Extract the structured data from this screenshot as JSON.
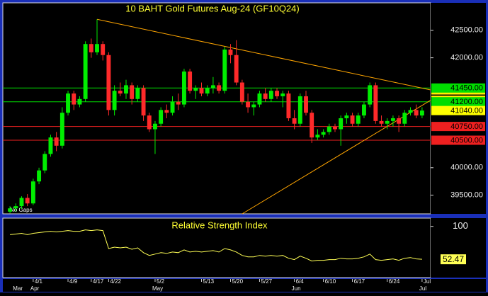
{
  "chart_data": [
    {
      "type": "candlestick",
      "title": "10 BAHT Gold Futures Aug-24 (GF10Q24)",
      "note": "No Gaps",
      "categories": [
        null,
        null,
        null,
        null,
        "4/1",
        null,
        null,
        null,
        null,
        null,
        "4/9",
        null,
        null,
        null,
        "4/17",
        null,
        null,
        "4/22",
        null,
        null,
        null,
        null,
        null,
        null,
        null,
        "5/2",
        null,
        null,
        null,
        null,
        null,
        null,
        null,
        "5/13",
        null,
        null,
        null,
        null,
        "5/20",
        null,
        null,
        null,
        null,
        "5/27",
        null,
        null,
        null,
        null,
        null,
        "6/4",
        null,
        null,
        null,
        null,
        "6/10",
        null,
        null,
        null,
        null,
        "6/17",
        null,
        null,
        null,
        null,
        null,
        "6/24",
        null,
        null,
        null,
        null,
        null,
        "Jul"
      ],
      "months": [
        null,
        "Mar",
        null,
        null,
        "Apr",
        null,
        null,
        null,
        null,
        null,
        null,
        null,
        null,
        null,
        null,
        null,
        null,
        null,
        null,
        null,
        null,
        null,
        null,
        null,
        null,
        "May",
        null,
        null,
        null,
        null,
        null,
        null,
        null,
        null,
        null,
        null,
        null,
        null,
        null,
        null,
        null,
        null,
        null,
        null,
        null,
        null,
        null,
        null,
        null,
        "Jun",
        null,
        null,
        null,
        null,
        null,
        null,
        null,
        null,
        null,
        null,
        null,
        null,
        null,
        null,
        null,
        null,
        null,
        null,
        null,
        null,
        null,
        "Jul"
      ],
      "open": [
        39200,
        39260,
        39300,
        39450,
        39350,
        39750,
        39950,
        40250,
        40550,
        40400,
        41000,
        41350,
        41150,
        41250,
        42250,
        42100,
        42250,
        42050,
        41050,
        41400,
        41350,
        41500,
        41250,
        41450,
        40950,
        40700,
        40800,
        41050,
        41000,
        41200,
        41150,
        41750,
        41400,
        41450,
        41350,
        41450,
        41500,
        41400,
        42150,
        42050,
        41550,
        41200,
        41100,
        41150,
        41350,
        41250,
        41400,
        41300,
        41350,
        40900,
        40800,
        41300,
        41000,
        40550,
        40600,
        40650,
        40750,
        40700,
        40900,
        40950,
        40800,
        40950,
        41150,
        41500,
        40850,
        40800,
        40850,
        40900,
        40800,
        41000,
        41050,
        40950
      ],
      "high": [
        39300,
        39350,
        39480,
        39520,
        39800,
        40000,
        40300,
        40600,
        40650,
        41100,
        41400,
        41400,
        41300,
        42300,
        42350,
        42700,
        42300,
        42100,
        41500,
        41550,
        41600,
        41550,
        41500,
        41500,
        41000,
        40850,
        41100,
        41150,
        41300,
        41350,
        41800,
        41800,
        41500,
        41550,
        41500,
        41650,
        41550,
        42200,
        42250,
        42320,
        41600,
        41350,
        41200,
        41400,
        41450,
        41450,
        41450,
        41400,
        41400,
        41050,
        41350,
        41400,
        41050,
        40700,
        40700,
        40800,
        40800,
        40950,
        41000,
        41000,
        41000,
        41200,
        41550,
        41550,
        40950,
        40900,
        40950,
        40950,
        41050,
        41100,
        41150,
        41100
      ],
      "low": [
        39170,
        39200,
        39250,
        39300,
        39320,
        39700,
        39900,
        40200,
        40300,
        40350,
        40950,
        41050,
        41100,
        41200,
        42000,
        42050,
        41950,
        40950,
        40950,
        41300,
        41250,
        41150,
        41200,
        40850,
        40650,
        40250,
        40750,
        40900,
        40950,
        41050,
        41100,
        41350,
        41250,
        41300,
        41300,
        41350,
        41350,
        41350,
        41900,
        41500,
        41150,
        41000,
        40950,
        41100,
        41200,
        41200,
        41250,
        41100,
        40850,
        40700,
        40750,
        40950,
        40450,
        40500,
        40550,
        40600,
        40650,
        40400,
        40800,
        40750,
        40750,
        40900,
        41100,
        40800,
        40750,
        40700,
        40750,
        40650,
        40750,
        40950,
        40900,
        40900
      ],
      "close": [
        39260,
        39300,
        39450,
        39350,
        39750,
        39950,
        40250,
        40550,
        40400,
        41000,
        41350,
        41150,
        41250,
        42250,
        42100,
        42250,
        42050,
        41050,
        41400,
        41350,
        41500,
        41250,
        41450,
        40950,
        40700,
        40800,
        41050,
        41000,
        41200,
        41150,
        41750,
        41400,
        41450,
        41350,
        41450,
        41500,
        41400,
        42150,
        42050,
        41550,
        41200,
        41100,
        41150,
        41350,
        41250,
        41400,
        41300,
        41350,
        40900,
        40800,
        41300,
        41000,
        40550,
        40600,
        40650,
        40750,
        40700,
        40900,
        40950,
        40800,
        40950,
        41150,
        41500,
        40850,
        40800,
        40850,
        40900,
        40800,
        41000,
        41050,
        40950,
        41040
      ],
      "up_color": "#00ee00",
      "down_color": "#ff2a2a",
      "ylim": [
        39160,
        43000
      ],
      "yticks": [
        {
          "value": 39500,
          "label": "39500.00"
        },
        {
          "value": 40000,
          "label": "40000.00"
        },
        {
          "value": 42000,
          "label": "42000.00"
        },
        {
          "value": 42500,
          "label": "42500.00"
        }
      ],
      "levels": [
        {
          "value": 41450,
          "label": "41450.00",
          "color": "#00dd00",
          "line": true
        },
        {
          "value": 41200,
          "label": "41200.00",
          "color": "#00dd00",
          "line": true
        },
        {
          "value": 40750,
          "label": "40750.00",
          "color": "#ee2020",
          "line": true
        },
        {
          "value": 40500,
          "label": "40500.00",
          "color": "#ee2020",
          "line": true
        },
        {
          "value": 41040,
          "label": "41040.00",
          "color": "#ffff00",
          "line": false
        }
      ],
      "trendlines": [
        {
          "start_index": 15,
          "start_value": 42700,
          "end_value": 41414.84,
          "color": "#ffa500"
        },
        {
          "start_index": 40,
          "start_value": 39160,
          "end_value": 41227.32,
          "color": "#ffa500"
        }
      ]
    },
    {
      "type": "line",
      "title": "Relative Strength Index",
      "values": [
        88,
        89,
        90,
        88,
        90,
        91,
        92,
        93,
        92,
        93,
        94,
        93,
        93,
        95,
        94,
        95,
        94,
        68,
        70,
        69,
        70,
        67,
        69,
        62,
        58,
        60,
        62,
        61,
        63,
        62,
        66,
        63,
        64,
        63,
        64,
        65,
        63,
        68,
        66,
        63,
        58,
        56,
        56,
        58,
        57,
        58,
        57,
        58,
        54,
        52,
        57,
        54,
        50,
        51,
        51,
        52,
        52,
        54,
        53,
        53,
        54,
        56,
        60,
        52,
        51,
        52,
        53,
        51,
        54,
        55,
        53,
        52.47
      ],
      "color": "#ffff55",
      "ylim": [
        26,
        112
      ],
      "yticks": [
        100
      ]
    }
  ]
}
